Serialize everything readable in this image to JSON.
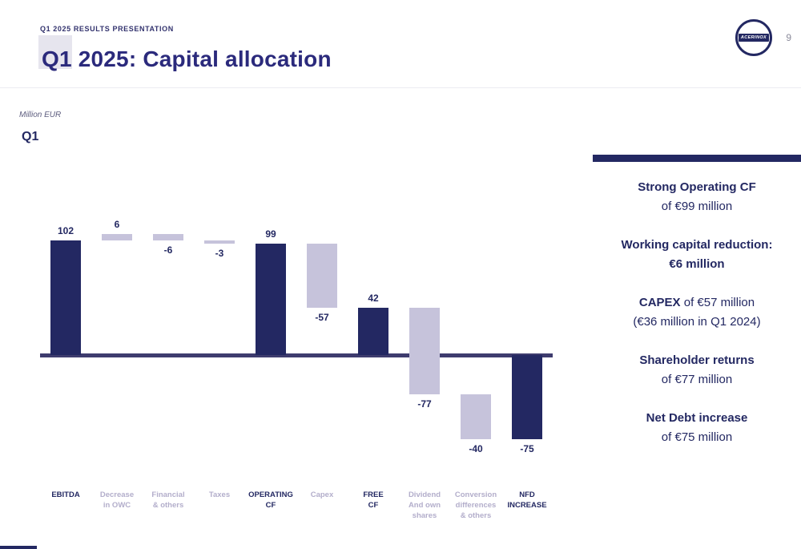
{
  "header": {
    "eyebrow": "Q1 2025 RESULTS PRESENTATION",
    "title": "Q1 2025: Capital allocation",
    "logo_text": "ACERINOX",
    "page_number": "9"
  },
  "chart_data": {
    "type": "bar",
    "subtype": "waterfall",
    "title": "Q1",
    "unit_label": "Million EUR",
    "categories": [
      "EBITDA",
      "Decrease\nin OWC",
      "Financial\n& others",
      "Taxes",
      "OPERATING\nCF",
      "Capex",
      "FREE\nCF",
      "Dividend\nAnd own\nshares",
      "Conversion\ndifferences\n& others",
      "NFD\nINCREASE"
    ],
    "values": [
      102,
      6,
      -6,
      -3,
      99,
      -57,
      42,
      -77,
      -40,
      -75
    ],
    "bar_types": [
      "total",
      "delta",
      "delta",
      "delta",
      "total",
      "delta",
      "total",
      "delta",
      "delta",
      "total"
    ],
    "labels": [
      "102",
      "6",
      "-6",
      "-3",
      "99",
      "-57",
      "42",
      "-77",
      "-40",
      "-75"
    ],
    "label_position": [
      "above",
      "above",
      "below",
      "below",
      "above",
      "below",
      "above",
      "below",
      "below",
      "below"
    ],
    "ylabel": "",
    "xlabel": "",
    "grid": false,
    "legend": false,
    "colors": {
      "total": "#232862",
      "delta": "#c6c3db",
      "baseline": "#3e3c6e",
      "value_label": "#232862",
      "category_total": "#232862",
      "category_delta": "#b3aecb"
    }
  },
  "panel": {
    "items": [
      {
        "lines": [
          [
            {
              "t": "Strong Operating CF",
              "b": true
            }
          ],
          [
            {
              "t": "of €99 million",
              "b": false
            }
          ]
        ]
      },
      {
        "lines": [
          [
            {
              "t": "Working capital reduction:",
              "b": true
            }
          ],
          [
            {
              "t": "€6 million",
              "b": true
            }
          ]
        ]
      },
      {
        "lines": [
          [
            {
              "t": "CAPEX",
              "b": true
            },
            {
              "t": " of €57 million",
              "b": false
            }
          ],
          [
            {
              "t": "(€36 million in Q1 2024)",
              "b": false
            }
          ]
        ]
      },
      {
        "lines": [
          [
            {
              "t": "Shareholder returns",
              "b": true
            }
          ],
          [
            {
              "t": "of €77 million",
              "b": false
            }
          ]
        ]
      },
      {
        "lines": [
          [
            {
              "t": "Net Debt increase",
              "b": true
            }
          ],
          [
            {
              "t": "of €75 million",
              "b": false
            }
          ]
        ]
      }
    ]
  }
}
